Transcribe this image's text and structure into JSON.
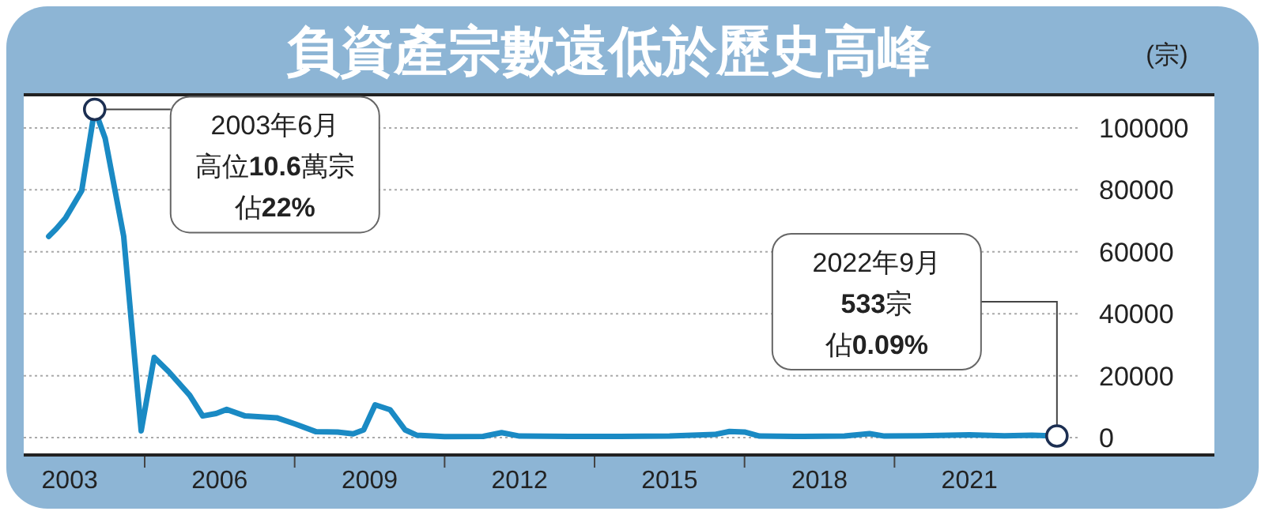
{
  "chart_data": {
    "type": "line",
    "title": "負資產宗數遠低於歷史高峰",
    "ylabel": "(宗)",
    "x": [
      2002.58,
      2002.73,
      2002.92,
      2003.24,
      2003.5,
      2003.71,
      2004.08,
      2004.43,
      2004.69,
      2004.98,
      2005.4,
      2005.66,
      2005.93,
      2006.14,
      2006.51,
      2007.14,
      2007.51,
      2007.93,
      2008.36,
      2008.67,
      2008.88,
      2009.11,
      2009.41,
      2009.71,
      2009.94,
      2010.5,
      2011.27,
      2011.64,
      2012.0,
      2013.0,
      2014.0,
      2015.0,
      2015.9,
      2016.2,
      2016.5,
      2016.8,
      2017.5,
      2018.5,
      2019.0,
      2019.3,
      2020.0,
      2021.0,
      2021.7,
      2022.25,
      2022.75
    ],
    "series": [
      {
        "color": "#1a8ac4",
        "values": [
          65000,
          67400,
          71000,
          79700,
          106000,
          96600,
          65000,
          2200,
          25900,
          21300,
          13700,
          7000,
          7800,
          9100,
          7000,
          6400,
          4400,
          1900,
          1800,
          1200,
          2500,
          10600,
          9000,
          2500,
          800,
          300,
          400,
          1600,
          500,
          400,
          400,
          500,
          1000,
          2000,
          1800,
          500,
          400,
          500,
          1300,
          500,
          600,
          900,
          600,
          800,
          533
        ]
      }
    ],
    "xlim": [
      2002.08,
      2025.9
    ],
    "xticks": [
      2003,
      {
        "value": 2004.5,
        "label": null
      },
      2006,
      {
        "value": 2007.5,
        "label": null
      },
      2009,
      {
        "value": 2010.5,
        "label": null
      },
      2012,
      {
        "value": 2013.5,
        "label": null
      },
      2015,
      {
        "value": 2016.5,
        "label": null
      },
      2018,
      {
        "value": 2019.5,
        "label": null
      },
      2021
    ],
    "ylim": [
      -5600,
      110700
    ],
    "yticks": [
      0,
      20000,
      40000,
      60000,
      80000,
      100000
    ],
    "grid": "y",
    "marker": "none",
    "line_style": "solid",
    "annotations": [
      "2003年6月",
      "高位10.6萬宗",
      "佔22%",
      "2022年9月",
      "533宗",
      "佔0.09%"
    ]
  }
}
